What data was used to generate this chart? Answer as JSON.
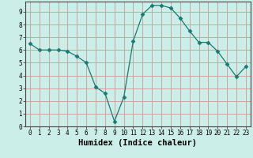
{
  "xlabel": "Humidex (Indice chaleur)",
  "ylabel": "",
  "x": [
    0,
    1,
    2,
    3,
    4,
    5,
    6,
    7,
    8,
    9,
    10,
    11,
    12,
    13,
    14,
    15,
    16,
    17,
    18,
    19,
    20,
    21,
    22,
    23
  ],
  "y": [
    6.5,
    6.0,
    6.0,
    6.0,
    5.9,
    5.5,
    5.0,
    3.1,
    2.6,
    0.4,
    2.3,
    6.7,
    8.8,
    9.5,
    9.5,
    9.3,
    8.5,
    7.5,
    6.6,
    6.6,
    5.9,
    4.9,
    3.9,
    4.7
  ],
  "line_color": "#1a7a6e",
  "marker": "D",
  "marker_size": 2.5,
  "background_color": "#cceee8",
  "grid_color_major": "#cc9999",
  "grid_color_minor": "#ddbbbb",
  "ylim": [
    0,
    9.8
  ],
  "xlim": [
    -0.5,
    23.5
  ],
  "yticks": [
    0,
    1,
    2,
    3,
    4,
    5,
    6,
    7,
    8,
    9
  ],
  "xticks": [
    0,
    1,
    2,
    3,
    4,
    5,
    6,
    7,
    8,
    9,
    10,
    11,
    12,
    13,
    14,
    15,
    16,
    17,
    18,
    19,
    20,
    21,
    22,
    23
  ],
  "xtick_labels": [
    "0",
    "1",
    "2",
    "3",
    "4",
    "5",
    "6",
    "7",
    "8",
    "9",
    "10",
    "11",
    "12",
    "13",
    "14",
    "15",
    "16",
    "17",
    "18",
    "19",
    "20",
    "21",
    "22",
    "23"
  ],
  "tick_fontsize": 5.5,
  "label_fontsize": 7.5,
  "font_family": "monospace"
}
